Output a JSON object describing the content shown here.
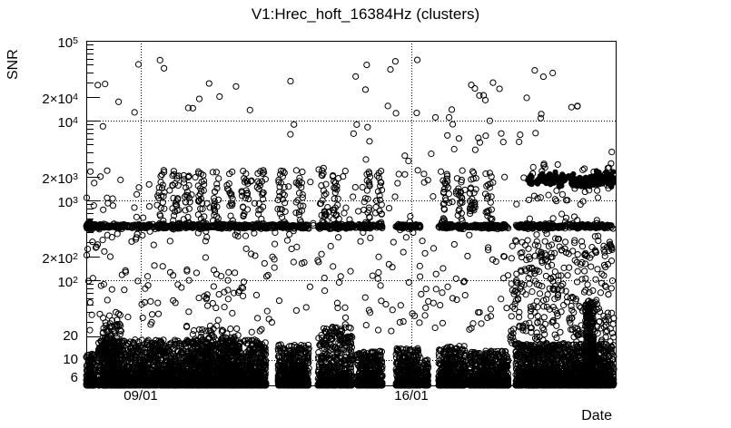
{
  "chart_data": {
    "type": "scatter",
    "title": "V1:Hrec_hoft_16384Hz (clusters)",
    "xlabel": "Date",
    "ylabel": "SNR",
    "marker": {
      "shape": "open-circle",
      "radius": 3.1,
      "color": "#000000"
    },
    "grid": "dotted",
    "x_axis": {
      "unit": "date (DD/MM)",
      "range_days": [
        7.59,
        21.285
      ],
      "major_ticks": [
        {
          "value": 9,
          "label": "09/01"
        },
        {
          "value": 16,
          "label": "16/01"
        }
      ],
      "minor_tick_every_days": 1,
      "gridlines_at": [
        9,
        16
      ]
    },
    "y_axis": {
      "scale": "log",
      "range": [
        4.81,
        100000
      ],
      "labeled_ticks": [
        {
          "text": "10",
          "sup": "5",
          "value": 100000
        },
        {
          "text": "2×10",
          "sup": "4",
          "value": 20000
        },
        {
          "text": "10",
          "sup": "4",
          "value": 10000
        },
        {
          "text": "2×10",
          "sup": "3",
          "value": 2000
        },
        {
          "text": "10",
          "sup": "3",
          "value": 1000
        },
        {
          "text": "2×10",
          "sup": "2",
          "value": 200
        },
        {
          "text": "10",
          "sup": "2",
          "value": 100
        },
        {
          "text": "20",
          "sup": "",
          "value": 20
        },
        {
          "text": "10",
          "sup": "",
          "value": 10
        },
        {
          "text": "6",
          "sup": "",
          "value": 6
        }
      ],
      "gridlines_at": [
        10,
        100,
        1000,
        10000
      ]
    },
    "clusters": [
      {
        "name": "bottom-mass",
        "d": [
          7.59,
          7.8
        ],
        "snr": [
          4.81,
          12
        ],
        "n": 160,
        "dist": "bottom"
      },
      {
        "name": "bottom-mass",
        "d": [
          7.9,
          12.24
        ],
        "snr": [
          4.81,
          18
        ],
        "n": 2800,
        "dist": "bottom"
      },
      {
        "name": "bottom-bump",
        "d": [
          8.02,
          8.5
        ],
        "snr": [
          4.81,
          30
        ],
        "n": 260,
        "dist": "bottom"
      },
      {
        "name": "bottom-bump",
        "d": [
          10.3,
          10.9
        ],
        "snr": [
          4.81,
          26
        ],
        "n": 200,
        "dist": "bottom"
      },
      {
        "name": "bottom-bump",
        "d": [
          11.05,
          11.55
        ],
        "snr": [
          4.81,
          26
        ],
        "n": 180,
        "dist": "bottom"
      },
      {
        "name": "bottom-mass",
        "d": [
          12.55,
          13.35
        ],
        "snr": [
          4.81,
          16
        ],
        "n": 500,
        "dist": "bottom"
      },
      {
        "name": "bottom-mass",
        "d": [
          13.58,
          14.47
        ],
        "snr": [
          4.81,
          26
        ],
        "n": 520,
        "dist": "bottom"
      },
      {
        "name": "bottom-mass",
        "d": [
          14.59,
          15.25
        ],
        "snr": [
          4.81,
          13
        ],
        "n": 420,
        "dist": "bottom"
      },
      {
        "name": "bottom-mass",
        "d": [
          15.6,
          16.23
        ],
        "snr": [
          4.81,
          14
        ],
        "n": 400,
        "dist": "bottom"
      },
      {
        "name": "bottom-mass",
        "d": [
          16.3,
          16.44
        ],
        "snr": [
          4.81,
          11
        ],
        "n": 90,
        "dist": "bottom"
      },
      {
        "name": "bottom-mass",
        "d": [
          16.7,
          17.41
        ],
        "snr": [
          4.81,
          15
        ],
        "n": 450,
        "dist": "bottom"
      },
      {
        "name": "bottom-mass",
        "d": [
          17.48,
          18.51
        ],
        "snr": [
          4.81,
          13
        ],
        "n": 600,
        "dist": "bottom"
      },
      {
        "name": "bottom-mass",
        "d": [
          18.7,
          21.24
        ],
        "snr": [
          4.81,
          16
        ],
        "n": 1700,
        "dist": "bottom"
      },
      {
        "name": "tall-spike",
        "d": [
          20.5,
          20.72
        ],
        "snr": [
          4.81,
          55
        ],
        "n": 300,
        "dist": "loguni"
      },
      {
        "name": "band-470",
        "d": [
          7.59,
          13.35
        ],
        "snr": [
          430,
          520
        ],
        "n": 560,
        "dist": "gauss"
      },
      {
        "name": "band-470",
        "d": [
          13.58,
          15.25
        ],
        "snr": [
          430,
          520
        ],
        "n": 170,
        "dist": "gauss"
      },
      {
        "name": "band-470",
        "d": [
          15.6,
          16.23
        ],
        "snr": [
          430,
          520
        ],
        "n": 70,
        "dist": "gauss"
      },
      {
        "name": "band-470",
        "d": [
          16.7,
          18.51
        ],
        "snr": [
          430,
          520
        ],
        "n": 190,
        "dist": "gauss"
      },
      {
        "name": "band-470",
        "d": [
          18.7,
          21.24
        ],
        "snr": [
          430,
          520
        ],
        "n": 260,
        "dist": "gauss"
      },
      {
        "name": "band-left-blob",
        "d": [
          7.59,
          7.72
        ],
        "snr": [
          410,
          560
        ],
        "n": 45,
        "dist": "gauss",
        "filled": true
      },
      {
        "name": "streak",
        "d": [
          9.46,
          9.64
        ],
        "snr": [
          470,
          2400
        ],
        "n": 22,
        "dist": "loguni"
      },
      {
        "name": "streak",
        "d": [
          9.81,
          9.99
        ],
        "snr": [
          470,
          2400
        ],
        "n": 22,
        "dist": "loguni"
      },
      {
        "name": "streak",
        "d": [
          10.11,
          10.29
        ],
        "snr": [
          470,
          2400
        ],
        "n": 22,
        "dist": "loguni"
      },
      {
        "name": "streak",
        "d": [
          10.46,
          10.64
        ],
        "snr": [
          470,
          2400
        ],
        "n": 22,
        "dist": "loguni"
      },
      {
        "name": "streak",
        "d": [
          10.86,
          11.04
        ],
        "snr": [
          470,
          2400
        ],
        "n": 22,
        "dist": "loguni"
      },
      {
        "name": "streak",
        "d": [
          11.21,
          11.39
        ],
        "snr": [
          470,
          2400
        ],
        "n": 22,
        "dist": "loguni"
      },
      {
        "name": "streak",
        "d": [
          11.61,
          11.79
        ],
        "snr": [
          470,
          2400
        ],
        "n": 22,
        "dist": "loguni"
      },
      {
        "name": "streak",
        "d": [
          12.01,
          12.19
        ],
        "snr": [
          470,
          2400
        ],
        "n": 22,
        "dist": "loguni"
      },
      {
        "name": "streak",
        "d": [
          12.56,
          12.74
        ],
        "snr": [
          470,
          2400
        ],
        "n": 22,
        "dist": "loguni"
      },
      {
        "name": "streak",
        "d": [
          13.01,
          13.19
        ],
        "snr": [
          470,
          2400
        ],
        "n": 22,
        "dist": "loguni"
      },
      {
        "name": "streak",
        "d": [
          13.66,
          13.84
        ],
        "snr": [
          470,
          2400
        ],
        "n": 22,
        "dist": "loguni"
      },
      {
        "name": "streak",
        "d": [
          13.96,
          14.14
        ],
        "snr": [
          470,
          2400
        ],
        "n": 22,
        "dist": "loguni"
      },
      {
        "name": "streak",
        "d": [
          14.76,
          14.94
        ],
        "snr": [
          470,
          2400
        ],
        "n": 22,
        "dist": "loguni"
      },
      {
        "name": "streak",
        "d": [
          15.06,
          15.24
        ],
        "snr": [
          470,
          2400
        ],
        "n": 22,
        "dist": "loguni"
      },
      {
        "name": "streak",
        "d": [
          16.81,
          16.99
        ],
        "snr": [
          470,
          2400
        ],
        "n": 22,
        "dist": "loguni"
      },
      {
        "name": "streak",
        "d": [
          17.16,
          17.34
        ],
        "snr": [
          470,
          2400
        ],
        "n": 22,
        "dist": "loguni"
      },
      {
        "name": "streak",
        "d": [
          17.51,
          17.69
        ],
        "snr": [
          470,
          2400
        ],
        "n": 22,
        "dist": "loguni"
      },
      {
        "name": "streak",
        "d": [
          17.91,
          18.09
        ],
        "snr": [
          470,
          2400
        ],
        "n": 22,
        "dist": "loguni"
      },
      {
        "name": "mid-scatter-low",
        "d": [
          7.59,
          21.24
        ],
        "snr": [
          22,
          430
        ],
        "n": 300,
        "dist": "loguni"
      },
      {
        "name": "mid-scatter-high",
        "d": [
          7.59,
          21.24
        ],
        "snr": [
          480,
          2600
        ],
        "n": 120,
        "dist": "loguni"
      },
      {
        "name": "right-low-scatter",
        "d": [
          18.55,
          21.24
        ],
        "snr": [
          11,
          320
        ],
        "n": 300,
        "dist": "loguni"
      },
      {
        "name": "top-sparse",
        "d": [
          7.59,
          21.24
        ],
        "snr": [
          2600,
          60000
        ],
        "n": 55,
        "dist": "loguni"
      },
      {
        "name": "mid-top-extra",
        "d": [
          14.3,
          18.4
        ],
        "snr": [
          3000,
          30000
        ],
        "n": 15,
        "dist": "loguni"
      },
      {
        "name": "right-cluster",
        "d": [
          19.0,
          19.35
        ],
        "snr": [
          1500,
          2100
        ],
        "n": 20,
        "dist": "gauss",
        "filled": true
      },
      {
        "name": "right-cluster",
        "d": [
          19.3,
          19.75
        ],
        "snr": [
          1500,
          2400
        ],
        "n": 45,
        "dist": "gauss",
        "filled": true
      },
      {
        "name": "right-cluster",
        "d": [
          19.75,
          20.2
        ],
        "snr": [
          1400,
          2300
        ],
        "n": 40,
        "dist": "gauss",
        "filled": true
      },
      {
        "name": "right-cluster",
        "d": [
          20.2,
          20.7
        ],
        "snr": [
          1300,
          2200
        ],
        "n": 45,
        "dist": "gauss",
        "filled": true
      },
      {
        "name": "right-cluster",
        "d": [
          20.6,
          21.24
        ],
        "snr": [
          1350,
          2600
        ],
        "n": 55,
        "dist": "gauss",
        "filled": true
      },
      {
        "name": "right-cluster-halo",
        "d": [
          18.85,
          21.24
        ],
        "snr": [
          900,
          3100
        ],
        "n": 30,
        "dist": "loguni"
      }
    ]
  }
}
